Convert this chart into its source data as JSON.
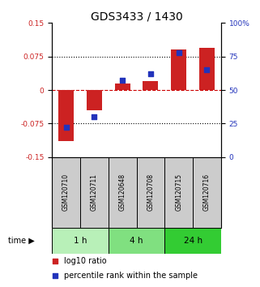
{
  "title": "GDS3433 / 1430",
  "samples": [
    "GSM120710",
    "GSM120711",
    "GSM120648",
    "GSM120708",
    "GSM120715",
    "GSM120716"
  ],
  "log10_ratio": [
    -0.115,
    -0.045,
    0.015,
    0.02,
    0.09,
    0.095
  ],
  "percentile_rank": [
    22,
    30,
    57,
    62,
    78,
    65
  ],
  "groups": [
    {
      "label": "1 h",
      "color": "#b8f0b8"
    },
    {
      "label": "4 h",
      "color": "#80e080"
    },
    {
      "label": "24 h",
      "color": "#33cc33"
    }
  ],
  "ylim_left": [
    -0.15,
    0.15
  ],
  "ylim_right": [
    0,
    100
  ],
  "yticks_left": [
    -0.15,
    -0.075,
    0,
    0.075,
    0.15
  ],
  "ytick_labels_left": [
    "-0.15",
    "-0.075",
    "0",
    "0.075",
    "0.15"
  ],
  "yticks_right": [
    0,
    25,
    50,
    75,
    100
  ],
  "ytick_labels_right": [
    "0",
    "25",
    "50",
    "75",
    "100%"
  ],
  "bar_color_red": "#cc2222",
  "bar_color_blue": "#2233bb",
  "hline_color": "#cc0000",
  "dotted_color": "#000000",
  "sample_box_color": "#cccccc",
  "bar_width": 0.55,
  "blue_square_size": 25
}
